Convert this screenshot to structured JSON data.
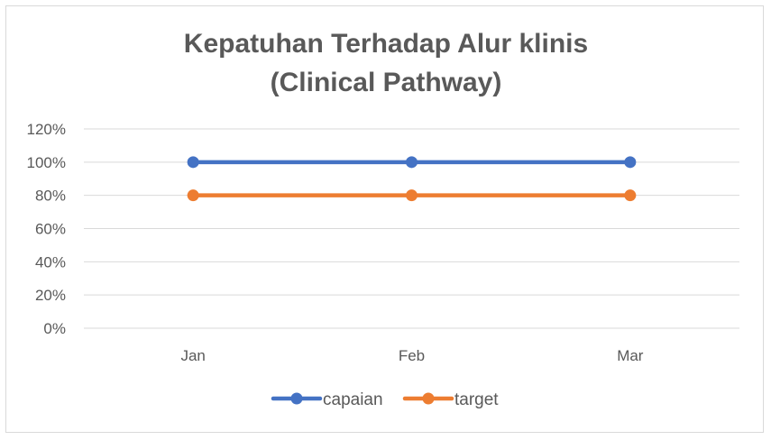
{
  "chart_data": {
    "type": "line",
    "title_lines": [
      "Kepatuhan Terhadap Alur klinis",
      "(Clinical Pathway)"
    ],
    "categories": [
      "Jan",
      "Feb",
      "Mar"
    ],
    "y_ticks": [
      "0%",
      "20%",
      "40%",
      "60%",
      "80%",
      "100%",
      "120%"
    ],
    "y_tick_values": [
      0,
      20,
      40,
      60,
      80,
      100,
      120
    ],
    "ylim": [
      0,
      120
    ],
    "grid": true,
    "legend_position": "bottom",
    "series": [
      {
        "name": "capaian",
        "values": [
          100,
          100,
          100
        ],
        "color": "#4472c4"
      },
      {
        "name": "target",
        "values": [
          80,
          80,
          80
        ],
        "color": "#ed7d31"
      }
    ]
  }
}
